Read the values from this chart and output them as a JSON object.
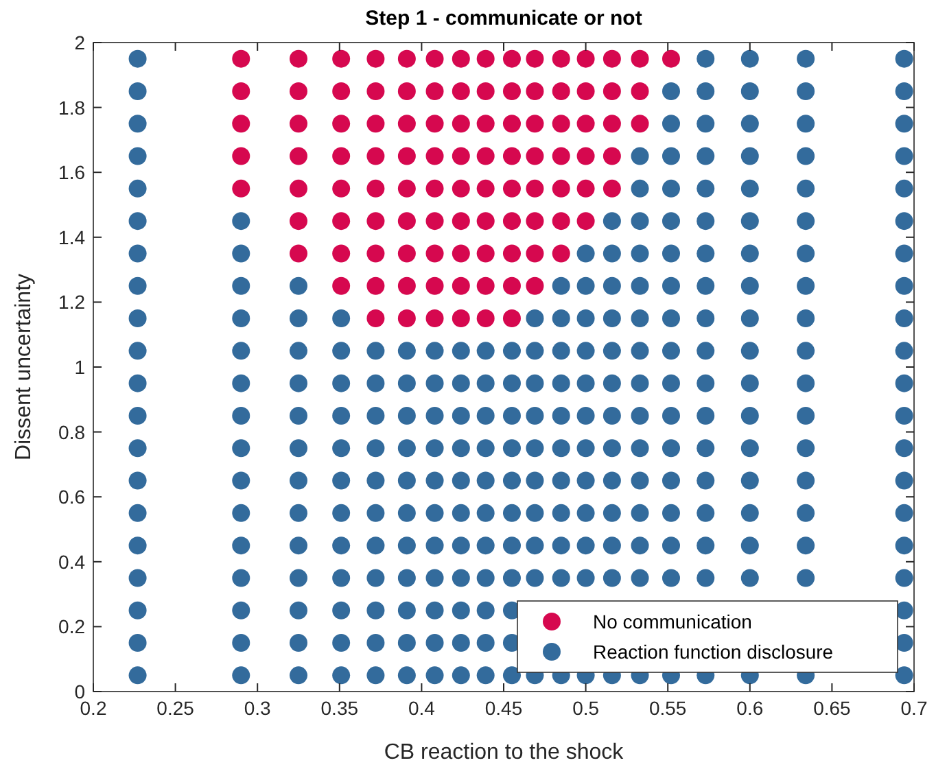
{
  "chart_data": {
    "type": "scatter",
    "title": "Step 1 - communicate or not",
    "xlabel": "CB reaction to the shock",
    "ylabel": "Dissent uncertainty",
    "xlim": [
      0.2,
      0.7
    ],
    "ylim": [
      0,
      2
    ],
    "xticks": [
      0.2,
      0.25,
      0.3,
      0.35,
      0.4,
      0.45,
      0.5,
      0.55,
      0.6,
      0.65,
      0.7
    ],
    "yticks": [
      0,
      0.2,
      0.4,
      0.6,
      0.8,
      1,
      1.2,
      1.4,
      1.6,
      1.8,
      2
    ],
    "grid": false,
    "legend": "bottom right",
    "marker": "circle",
    "series": [
      {
        "name": "No communication",
        "color": "#d6084f",
        "x": [
          0.29,
          0.325,
          0.351,
          0.372,
          0.391,
          0.408,
          0.424,
          0.439,
          0.455,
          0.469,
          0.485,
          0.5,
          0.516,
          0.533,
          0.552,
          0.29,
          0.325,
          0.351,
          0.372,
          0.391,
          0.408,
          0.424,
          0.439,
          0.455,
          0.469,
          0.485,
          0.5,
          0.516,
          0.533,
          0.29,
          0.325,
          0.351,
          0.372,
          0.391,
          0.408,
          0.424,
          0.439,
          0.455,
          0.469,
          0.485,
          0.5,
          0.516,
          0.533,
          0.29,
          0.325,
          0.351,
          0.372,
          0.391,
          0.408,
          0.424,
          0.439,
          0.455,
          0.469,
          0.485,
          0.5,
          0.516,
          0.29,
          0.325,
          0.351,
          0.372,
          0.391,
          0.408,
          0.424,
          0.439,
          0.455,
          0.469,
          0.485,
          0.5,
          0.516,
          0.325,
          0.351,
          0.372,
          0.391,
          0.408,
          0.424,
          0.439,
          0.455,
          0.469,
          0.485,
          0.5,
          0.325,
          0.351,
          0.372,
          0.391,
          0.408,
          0.424,
          0.439,
          0.455,
          0.469,
          0.485,
          0.351,
          0.372,
          0.391,
          0.408,
          0.424,
          0.439,
          0.455,
          0.469,
          0.372,
          0.391,
          0.408,
          0.424,
          0.439,
          0.455
        ],
        "values": [
          1.95,
          1.95,
          1.95,
          1.95,
          1.95,
          1.95,
          1.95,
          1.95,
          1.95,
          1.95,
          1.95,
          1.95,
          1.95,
          1.95,
          1.95,
          1.85,
          1.85,
          1.85,
          1.85,
          1.85,
          1.85,
          1.85,
          1.85,
          1.85,
          1.85,
          1.85,
          1.85,
          1.85,
          1.85,
          1.75,
          1.75,
          1.75,
          1.75,
          1.75,
          1.75,
          1.75,
          1.75,
          1.75,
          1.75,
          1.75,
          1.75,
          1.75,
          1.75,
          1.65,
          1.65,
          1.65,
          1.65,
          1.65,
          1.65,
          1.65,
          1.65,
          1.65,
          1.65,
          1.65,
          1.65,
          1.65,
          1.55,
          1.55,
          1.55,
          1.55,
          1.55,
          1.55,
          1.55,
          1.55,
          1.55,
          1.55,
          1.55,
          1.55,
          1.55,
          1.45,
          1.45,
          1.45,
          1.45,
          1.45,
          1.45,
          1.45,
          1.45,
          1.45,
          1.45,
          1.45,
          1.35,
          1.35,
          1.35,
          1.35,
          1.35,
          1.35,
          1.35,
          1.35,
          1.35,
          1.35,
          1.25,
          1.25,
          1.25,
          1.25,
          1.25,
          1.25,
          1.25,
          1.25,
          1.15,
          1.15,
          1.15,
          1.15,
          1.15,
          1.15
        ]
      },
      {
        "name": "Reaction function disclosure",
        "color": "#336b9c",
        "x": [
          0.227,
          0.573,
          0.6,
          0.634,
          0.694,
          0.227,
          0.552,
          0.573,
          0.6,
          0.634,
          0.694,
          0.227,
          0.552,
          0.573,
          0.6,
          0.634,
          0.694,
          0.227,
          0.533,
          0.552,
          0.573,
          0.6,
          0.634,
          0.694,
          0.227,
          0.533,
          0.552,
          0.573,
          0.6,
          0.634,
          0.694,
          0.227,
          0.29,
          0.516,
          0.533,
          0.552,
          0.573,
          0.6,
          0.634,
          0.694,
          0.227,
          0.29,
          0.5,
          0.516,
          0.533,
          0.552,
          0.573,
          0.6,
          0.634,
          0.694,
          0.227,
          0.29,
          0.325,
          0.485,
          0.5,
          0.516,
          0.533,
          0.552,
          0.573,
          0.6,
          0.634,
          0.694,
          0.227,
          0.29,
          0.325,
          0.351,
          0.469,
          0.485,
          0.5,
          0.516,
          0.533,
          0.552,
          0.573,
          0.6,
          0.634,
          0.694,
          0.227,
          0.29,
          0.325,
          0.351,
          0.372,
          0.391,
          0.408,
          0.424,
          0.439,
          0.455,
          0.469,
          0.485,
          0.5,
          0.516,
          0.533,
          0.552,
          0.573,
          0.6,
          0.634,
          0.694,
          0.227,
          0.29,
          0.325,
          0.351,
          0.372,
          0.391,
          0.408,
          0.424,
          0.439,
          0.455,
          0.469,
          0.485,
          0.5,
          0.516,
          0.533,
          0.552,
          0.573,
          0.6,
          0.634,
          0.694,
          0.227,
          0.29,
          0.325,
          0.351,
          0.372,
          0.391,
          0.408,
          0.424,
          0.439,
          0.455,
          0.469,
          0.485,
          0.5,
          0.516,
          0.533,
          0.552,
          0.573,
          0.6,
          0.634,
          0.694,
          0.227,
          0.29,
          0.325,
          0.351,
          0.372,
          0.391,
          0.408,
          0.424,
          0.439,
          0.455,
          0.469,
          0.485,
          0.5,
          0.516,
          0.533,
          0.552,
          0.573,
          0.6,
          0.634,
          0.694,
          0.227,
          0.29,
          0.325,
          0.351,
          0.372,
          0.391,
          0.408,
          0.424,
          0.439,
          0.455,
          0.469,
          0.485,
          0.5,
          0.516,
          0.533,
          0.552,
          0.573,
          0.6,
          0.634,
          0.694,
          0.227,
          0.29,
          0.325,
          0.351,
          0.372,
          0.391,
          0.408,
          0.424,
          0.439,
          0.455,
          0.469,
          0.485,
          0.5,
          0.516,
          0.533,
          0.552,
          0.573,
          0.6,
          0.634,
          0.694,
          0.227,
          0.29,
          0.325,
          0.351,
          0.372,
          0.391,
          0.408,
          0.424,
          0.439,
          0.455,
          0.469,
          0.485,
          0.5,
          0.516,
          0.533,
          0.552,
          0.573,
          0.6,
          0.634,
          0.694,
          0.227,
          0.29,
          0.325,
          0.351,
          0.372,
          0.391,
          0.408,
          0.424,
          0.439,
          0.455,
          0.469,
          0.485,
          0.5,
          0.516,
          0.533,
          0.552,
          0.573,
          0.6,
          0.634,
          0.694,
          0.227,
          0.29,
          0.325,
          0.351,
          0.372,
          0.391,
          0.408,
          0.424,
          0.439,
          0.455,
          0.694,
          0.227,
          0.29,
          0.325,
          0.351,
          0.372,
          0.391,
          0.408,
          0.424,
          0.439,
          0.455,
          0.694,
          0.227,
          0.29,
          0.325,
          0.351,
          0.372,
          0.391,
          0.408,
          0.424,
          0.439,
          0.455,
          0.469,
          0.485,
          0.5,
          0.516,
          0.533,
          0.552,
          0.573,
          0.6,
          0.634,
          0.694
        ],
        "values": [
          1.95,
          1.95,
          1.95,
          1.95,
          1.95,
          1.85,
          1.85,
          1.85,
          1.85,
          1.85,
          1.85,
          1.75,
          1.75,
          1.75,
          1.75,
          1.75,
          1.75,
          1.65,
          1.65,
          1.65,
          1.65,
          1.65,
          1.65,
          1.65,
          1.55,
          1.55,
          1.55,
          1.55,
          1.55,
          1.55,
          1.55,
          1.45,
          1.45,
          1.45,
          1.45,
          1.45,
          1.45,
          1.45,
          1.45,
          1.45,
          1.35,
          1.35,
          1.35,
          1.35,
          1.35,
          1.35,
          1.35,
          1.35,
          1.35,
          1.35,
          1.25,
          1.25,
          1.25,
          1.25,
          1.25,
          1.25,
          1.25,
          1.25,
          1.25,
          1.25,
          1.25,
          1.25,
          1.15,
          1.15,
          1.15,
          1.15,
          1.15,
          1.15,
          1.15,
          1.15,
          1.15,
          1.15,
          1.15,
          1.15,
          1.15,
          1.15,
          1.05,
          1.05,
          1.05,
          1.05,
          1.05,
          1.05,
          1.05,
          1.05,
          1.05,
          1.05,
          1.05,
          1.05,
          1.05,
          1.05,
          1.05,
          1.05,
          1.05,
          1.05,
          1.05,
          1.05,
          0.95,
          0.95,
          0.95,
          0.95,
          0.95,
          0.95,
          0.95,
          0.95,
          0.95,
          0.95,
          0.95,
          0.95,
          0.95,
          0.95,
          0.95,
          0.95,
          0.95,
          0.95,
          0.95,
          0.95,
          0.85,
          0.85,
          0.85,
          0.85,
          0.85,
          0.85,
          0.85,
          0.85,
          0.85,
          0.85,
          0.85,
          0.85,
          0.85,
          0.85,
          0.85,
          0.85,
          0.85,
          0.85,
          0.85,
          0.85,
          0.75,
          0.75,
          0.75,
          0.75,
          0.75,
          0.75,
          0.75,
          0.75,
          0.75,
          0.75,
          0.75,
          0.75,
          0.75,
          0.75,
          0.75,
          0.75,
          0.75,
          0.75,
          0.75,
          0.75,
          0.65,
          0.65,
          0.65,
          0.65,
          0.65,
          0.65,
          0.65,
          0.65,
          0.65,
          0.65,
          0.65,
          0.65,
          0.65,
          0.65,
          0.65,
          0.65,
          0.65,
          0.65,
          0.65,
          0.65,
          0.55,
          0.55,
          0.55,
          0.55,
          0.55,
          0.55,
          0.55,
          0.55,
          0.55,
          0.55,
          0.55,
          0.55,
          0.55,
          0.55,
          0.55,
          0.55,
          0.55,
          0.55,
          0.55,
          0.55,
          0.45,
          0.45,
          0.45,
          0.45,
          0.45,
          0.45,
          0.45,
          0.45,
          0.45,
          0.45,
          0.45,
          0.45,
          0.45,
          0.45,
          0.45,
          0.45,
          0.45,
          0.45,
          0.45,
          0.45,
          0.35,
          0.35,
          0.35,
          0.35,
          0.35,
          0.35,
          0.35,
          0.35,
          0.35,
          0.35,
          0.35,
          0.35,
          0.35,
          0.35,
          0.35,
          0.35,
          0.35,
          0.35,
          0.35,
          0.35,
          0.25,
          0.25,
          0.25,
          0.25,
          0.25,
          0.25,
          0.25,
          0.25,
          0.25,
          0.25,
          0.25,
          0.15,
          0.15,
          0.15,
          0.15,
          0.15,
          0.15,
          0.15,
          0.15,
          0.15,
          0.15,
          0.15,
          0.05,
          0.05,
          0.05,
          0.05,
          0.05,
          0.05,
          0.05,
          0.05,
          0.05,
          0.05,
          0.05,
          0.05,
          0.05,
          0.05,
          0.05,
          0.05,
          0.05,
          0.05,
          0.05,
          0.05
        ]
      }
    ]
  }
}
